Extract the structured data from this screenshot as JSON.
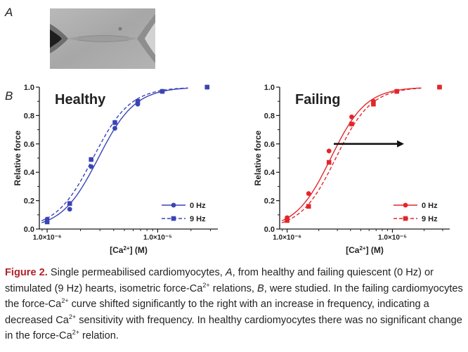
{
  "panel_a_label": "A",
  "panel_b_label": "B",
  "chart_data": [
    {
      "type": "scatter",
      "title": "Healthy",
      "xlabel": "[Ca2+] (M)",
      "ylabel": "Relative force",
      "xscale": "log",
      "xlim": [
        8.5e-07,
        3.5e-05
      ],
      "ylim": [
        0,
        1.0
      ],
      "yticks": [
        "0.0",
        "0.2",
        "0.4",
        "0.6",
        "0.8",
        "1.0"
      ],
      "xticks": [
        {
          "value": 1e-06,
          "label": "1.0×10⁻⁶"
        },
        {
          "value": 1e-05,
          "label": "1.0×10⁻⁵"
        }
      ],
      "legend_placement": "bottom-right",
      "color": "#3a44b5",
      "series": [
        {
          "name": "0 Hz",
          "marker": "circle",
          "line": "solid",
          "ec50": 2.9e-06,
          "hill": 2.6,
          "x": [
            1e-06,
            1.6e-06,
            2.5e-06,
            4.1e-06,
            6.6e-06,
            1.1e-05,
            2.8e-05
          ],
          "y": [
            0.07,
            0.14,
            0.44,
            0.71,
            0.88,
            0.97,
            1.0
          ]
        },
        {
          "name": "9 Hz",
          "marker": "square",
          "line": "dashed",
          "ec50": 2.6e-06,
          "hill": 2.6,
          "x": [
            1e-06,
            1.6e-06,
            2.5e-06,
            4.1e-06,
            6.6e-06,
            1.1e-05,
            2.8e-05
          ],
          "y": [
            0.05,
            0.18,
            0.49,
            0.75,
            0.9,
            0.97,
            1.0
          ]
        }
      ]
    },
    {
      "type": "scatter",
      "title": "Failing",
      "xlabel": "[Ca2+] (M)",
      "ylabel": "Relative force",
      "xscale": "log",
      "xlim": [
        8.5e-07,
        3.5e-05
      ],
      "ylim": [
        0,
        1.0
      ],
      "yticks": [
        "0.0",
        "0.2",
        "0.4",
        "0.6",
        "0.8",
        "1.0"
      ],
      "xticks": [
        {
          "value": 1e-06,
          "label": "1.0×10⁻⁶"
        },
        {
          "value": 1e-05,
          "label": "1.0×10⁻⁵"
        }
      ],
      "legend_placement": "bottom-right",
      "color": "#e3262b",
      "arrow": "right",
      "series": [
        {
          "name": "0 Hz",
          "marker": "circle",
          "line": "solid",
          "ec50": 2.6e-06,
          "hill": 2.6,
          "x": [
            1e-06,
            1.6e-06,
            2.5e-06,
            4.1e-06,
            6.6e-06,
            1.1e-05,
            2.8e-05
          ],
          "y": [
            0.08,
            0.25,
            0.55,
            0.79,
            0.9,
            0.97,
            1.0
          ]
        },
        {
          "name": "9 Hz",
          "marker": "square",
          "line": "dashed",
          "ec50": 2.9e-06,
          "hill": 2.6,
          "x": [
            1e-06,
            1.6e-06,
            2.5e-06,
            4.1e-06,
            6.6e-06,
            1.1e-05,
            2.8e-05
          ],
          "y": [
            0.06,
            0.16,
            0.47,
            0.74,
            0.88,
            0.97,
            1.0
          ]
        }
      ]
    }
  ],
  "caption": {
    "figure_label": "Figure 2.",
    "text_1": " Single permeabilised cardiomyocytes, ",
    "a": "A",
    "text_2": ", from healthy and failing quiescent (0 Hz) or stimulated (9 Hz) hearts, isometric force-Ca",
    "sup_1": "2+",
    "text_3": " relations, ",
    "b": "B",
    "text_4": ", were studied. In the failing cardiomyocytes the force-Ca",
    "sup_2": "2+",
    "text_5": " curve shifted significantly to the right with an increase in frequency, indicating a decreased Ca",
    "sup_3": "2+",
    "text_6": " sensitivity with frequency. In healthy cardiomyocytes there was no significant change in the force-Ca",
    "sup_4": "2+",
    "text_7": " relation."
  }
}
